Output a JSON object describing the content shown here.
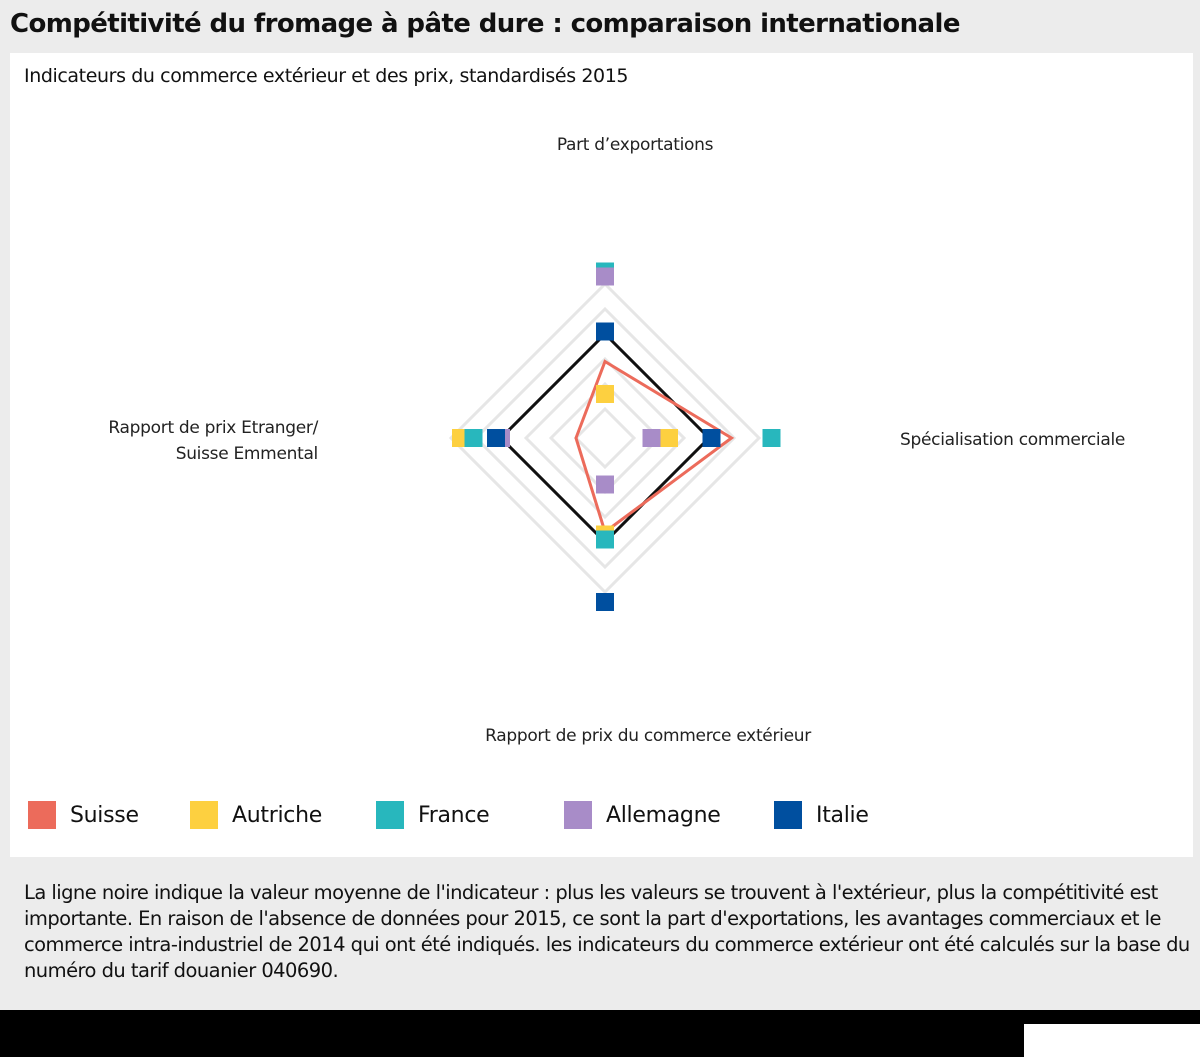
{
  "title": "Compétitivité du fromage à pâte dure : comparaison internationale",
  "note": "La ligne noire indique la valeur moyenne de l'indicateur : plus les valeurs se trouvent à l'extérieur, plus la compétitivité est importante. En raison de l'absence de données pour 2015, ce sont la part d'exportations, les avantages commerciaux et le commerce intra-industriel de 2014 qui ont été indiqués. les indicateurs du commerce extérieur ont été calculés sur la base du numéro du tarif douanier 040690.",
  "chart_data": {
    "type": "radar",
    "subtitle": "Indicateurs du commerce extérieur et des prix, standardisés 2015",
    "axes": [
      {
        "key": "top",
        "label_lines": [
          "Part d’exportations"
        ]
      },
      {
        "key": "right",
        "label_lines": [
          "Spécialisation commerciale"
        ]
      },
      {
        "key": "bottom",
        "label_lines": [
          "Rapport de prix du commerce extérieur"
        ]
      },
      {
        "key": "left",
        "label_lines": [
          "Rapport de prix Etranger/",
          "Suisse Emmental"
        ]
      }
    ],
    "rings": 6,
    "range": [
      0,
      6
    ],
    "grid": true,
    "legend_position": "bottom",
    "average_line": {
      "color": "#111111",
      "values": [
        4,
        4,
        4,
        4
      ]
    },
    "series": [
      {
        "name": "Suisse",
        "color": "#ec6b5b",
        "style": "line",
        "values": [
          2.9,
          4.9,
          3.6,
          1.0
        ]
      },
      {
        "name": "Autriche",
        "color": "#fdd040",
        "style": "marker",
        "values": [
          1.6,
          2.4,
          3.7,
          5.6
        ]
      },
      {
        "name": "France",
        "color": "#28b7bd",
        "style": "marker",
        "values": [
          6.5,
          6.5,
          3.9,
          5.1
        ]
      },
      {
        "name": "Allemagne",
        "color": "#a88cc8",
        "style": "marker",
        "values": [
          6.3,
          1.7,
          1.7,
          4.0
        ]
      },
      {
        "name": "Italie",
        "color": "#004f9f",
        "style": "marker",
        "values": [
          4.1,
          4.1,
          6.4,
          4.2
        ]
      }
    ]
  }
}
